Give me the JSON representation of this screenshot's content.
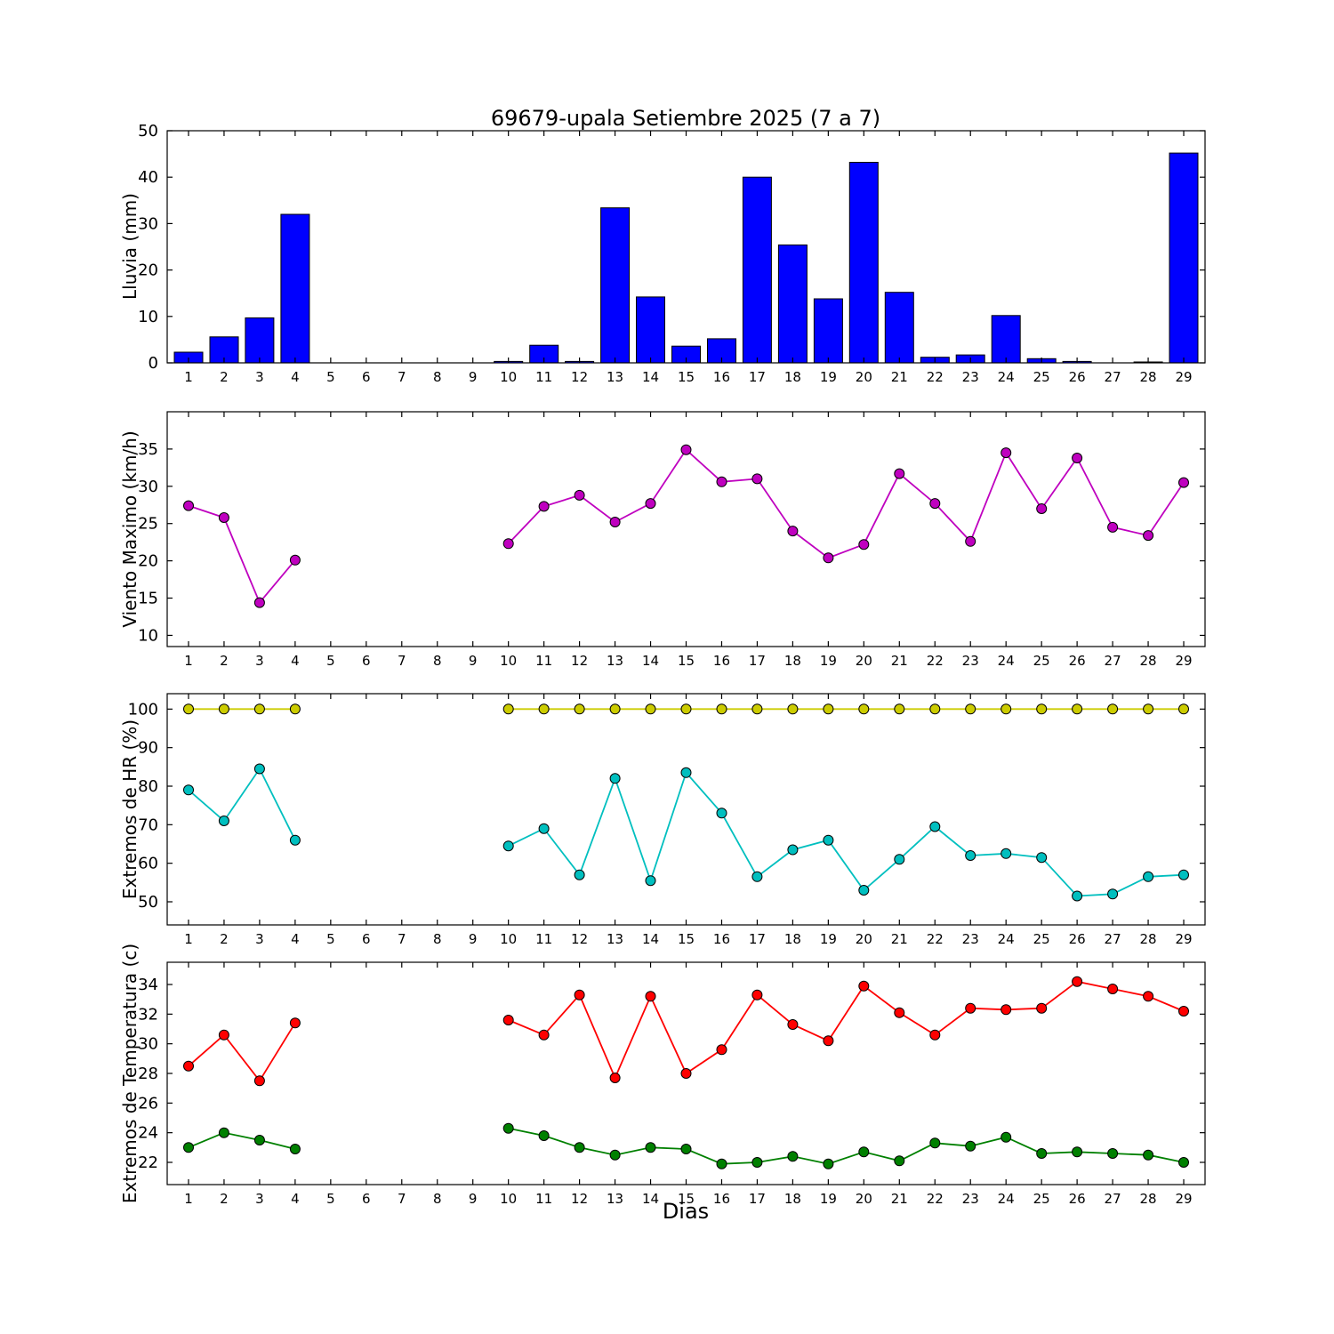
{
  "title": "69679-upala Setiembre 2025  (7 a 7)",
  "xlabel": "Dias",
  "days": [
    1,
    2,
    3,
    4,
    5,
    6,
    7,
    8,
    9,
    10,
    11,
    12,
    13,
    14,
    15,
    16,
    17,
    18,
    19,
    20,
    21,
    22,
    23,
    24,
    25,
    26,
    27,
    28,
    29
  ],
  "chart_data": [
    {
      "name": "lluvia",
      "type": "bar",
      "ylabel": "Lluvia (mm)",
      "ylim": [
        0,
        50
      ],
      "yticks": [
        0,
        10,
        20,
        30,
        40,
        50
      ],
      "series": [
        {
          "name": "lluvia",
          "color": "#0000ff",
          "values": [
            2.3,
            5.6,
            9.7,
            32.0,
            0,
            0,
            0,
            0,
            0,
            0.3,
            3.8,
            0.3,
            33.4,
            14.2,
            3.6,
            5.2,
            40.0,
            25.4,
            13.8,
            43.2,
            15.2,
            1.2,
            1.7,
            10.2,
            0.9,
            0.3,
            0,
            0.2,
            45.2
          ]
        }
      ]
    },
    {
      "name": "viento",
      "type": "line",
      "ylabel": "Viento Maximo (km/h)",
      "ylim": [
        8.5,
        40
      ],
      "yticks": [
        10,
        15,
        20,
        25,
        30,
        35
      ],
      "series": [
        {
          "name": "viento-maximo",
          "color": "#bf00bf",
          "values": [
            27.4,
            25.8,
            14.4,
            20.1,
            null,
            null,
            null,
            null,
            null,
            22.3,
            27.3,
            28.8,
            25.2,
            27.7,
            34.9,
            30.6,
            31.0,
            24.0,
            20.4,
            22.2,
            31.7,
            27.7,
            22.6,
            34.5,
            27.0,
            33.8,
            24.5,
            23.4,
            30.5
          ]
        }
      ]
    },
    {
      "name": "hr",
      "type": "line",
      "ylabel": "Extremos de HR (%)",
      "ylim": [
        44,
        104
      ],
      "yticks": [
        50,
        60,
        70,
        80,
        90,
        100
      ],
      "series": [
        {
          "name": "hr-max",
          "color": "#cccc00",
          "values": [
            100,
            100,
            100,
            100,
            null,
            null,
            null,
            null,
            null,
            100,
            100,
            100,
            100,
            100,
            100,
            100,
            100,
            100,
            100,
            100,
            100,
            100,
            100,
            100,
            100,
            100,
            100,
            100,
            100
          ]
        },
        {
          "name": "hr-min",
          "color": "#00bfbf",
          "values": [
            79,
            71,
            84.5,
            66,
            null,
            null,
            null,
            null,
            null,
            64.5,
            69,
            57,
            82,
            55.5,
            83.5,
            73,
            56.5,
            63.5,
            66,
            53,
            61,
            69.5,
            62,
            62.5,
            61.5,
            51.5,
            52,
            56.5,
            57
          ]
        }
      ]
    },
    {
      "name": "temperatura",
      "type": "line",
      "ylabel": "Extremos de Temperatura (c)",
      "ylim": [
        20.5,
        35.5
      ],
      "yticks": [
        22,
        24,
        26,
        28,
        30,
        32,
        34
      ],
      "series": [
        {
          "name": "temp-max",
          "color": "#ff0000",
          "values": [
            28.5,
            30.6,
            27.5,
            31.4,
            null,
            null,
            null,
            null,
            null,
            31.6,
            30.6,
            33.3,
            27.7,
            33.2,
            28.0,
            29.6,
            33.3,
            31.3,
            30.2,
            33.9,
            32.1,
            30.6,
            32.4,
            32.3,
            32.4,
            34.2,
            33.7,
            33.2,
            32.2
          ]
        },
        {
          "name": "temp-min",
          "color": "#008000",
          "values": [
            23.0,
            24.0,
            23.5,
            22.9,
            null,
            null,
            null,
            null,
            null,
            24.3,
            23.8,
            23.0,
            22.5,
            23.0,
            22.9,
            21.9,
            22.0,
            22.4,
            21.9,
            22.7,
            22.1,
            23.3,
            23.1,
            23.7,
            22.6,
            22.7,
            22.6,
            22.5,
            22.0
          ]
        }
      ]
    }
  ]
}
